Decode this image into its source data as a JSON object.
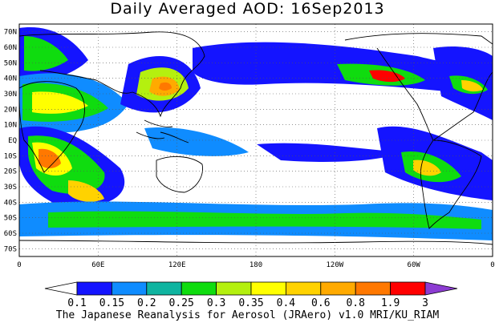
{
  "title": "Daily Averaged AOD: 16Sep2013",
  "footer": "The Japanese Reanalysis for Aerosol (JRAero) v1.0 MRI/KU_RIAM",
  "map": {
    "projection": "equirectangular, Pacific-centered",
    "lon_range": [
      0,
      360
    ],
    "lat_range": [
      -75,
      75
    ],
    "lat_ticks": [
      "70N",
      "60N",
      "50N",
      "40N",
      "30N",
      "20N",
      "10N",
      "EQ",
      "10S",
      "20S",
      "30S",
      "40S",
      "50S",
      "60S",
      "70S"
    ],
    "lon_ticks": [
      "0",
      "60E",
      "120E",
      "180",
      "120W",
      "60W",
      "0"
    ],
    "gridlines": "dotted every 60 deg lon and 10 deg lat"
  },
  "colorbar": {
    "labels": [
      "0.1",
      "0.15",
      "0.2",
      "0.25",
      "0.3",
      "0.35",
      "0.4",
      "0.6",
      "0.8",
      "1.9",
      "3"
    ],
    "colors": [
      "#ffffff",
      "#1414ff",
      "#0f8cff",
      "#0fb4a0",
      "#0fdc0f",
      "#b4f00f",
      "#ffff00",
      "#ffd200",
      "#ffaa00",
      "#ff7800",
      "#ff0000",
      "#8c3cd2"
    ]
  }
}
